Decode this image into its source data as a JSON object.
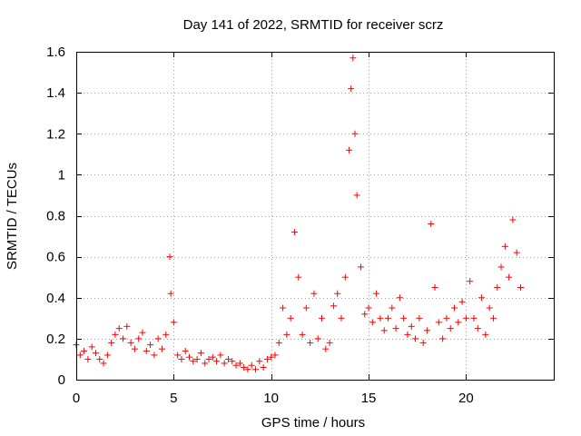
{
  "chart_data": {
    "type": "scatter",
    "title": "Day 141 of 2022, SRMTID for receiver scrz",
    "xlabel": "GPS time / hours",
    "ylabel": "SRMTID / TECUs",
    "xlim": [
      0,
      24.5
    ],
    "ylim": [
      0,
      1.6
    ],
    "xticks": [
      0,
      5,
      10,
      15,
      20
    ],
    "xtick_labels": [
      "0",
      "5",
      "10",
      "15",
      "20"
    ],
    "yticks": [
      0,
      0.2,
      0.4,
      0.6,
      0.8,
      1.0,
      1.2,
      1.4,
      1.6
    ],
    "ytick_labels": [
      "0",
      "0.2",
      "0.4",
      "0.6",
      "0.8",
      "1",
      "1.2",
      "1.4",
      "1.6"
    ],
    "grid": true,
    "marker": "plus",
    "color": "#ff0000",
    "series": [
      {
        "name": "SRMTID",
        "x": [
          0.0,
          0.2,
          0.4,
          0.6,
          0.8,
          1.0,
          1.2,
          1.4,
          1.6,
          1.8,
          2.0,
          2.2,
          2.4,
          2.6,
          2.8,
          3.0,
          3.2,
          3.4,
          3.6,
          3.8,
          4.0,
          4.2,
          4.4,
          4.6,
          4.8,
          4.85,
          5.0,
          5.2,
          5.4,
          5.6,
          5.8,
          6.0,
          6.2,
          6.4,
          6.6,
          6.8,
          7.0,
          7.2,
          7.4,
          7.6,
          7.8,
          8.0,
          8.2,
          8.4,
          8.6,
          8.8,
          9.0,
          9.2,
          9.4,
          9.6,
          9.8,
          10.0,
          10.2,
          10.4,
          10.6,
          10.8,
          11.0,
          11.2,
          11.4,
          11.6,
          11.8,
          12.0,
          12.2,
          12.4,
          12.6,
          12.8,
          13.0,
          13.2,
          13.4,
          13.6,
          13.8,
          14.0,
          14.1,
          14.2,
          14.3,
          14.4,
          14.6,
          14.8,
          15.0,
          15.2,
          15.4,
          15.6,
          15.8,
          16.0,
          16.2,
          16.4,
          16.6,
          16.8,
          17.0,
          17.2,
          17.4,
          17.6,
          17.8,
          18.0,
          18.2,
          18.4,
          18.6,
          18.8,
          19.0,
          19.2,
          19.4,
          19.6,
          19.8,
          20.0,
          20.2,
          20.4,
          20.6,
          20.8,
          21.0,
          21.2,
          21.4,
          21.6,
          21.8,
          22.0,
          22.2,
          22.4,
          22.6,
          22.8
        ],
        "y": [
          0.17,
          0.12,
          0.14,
          0.1,
          0.16,
          0.13,
          0.1,
          0.08,
          0.12,
          0.18,
          0.22,
          0.25,
          0.2,
          0.26,
          0.18,
          0.15,
          0.2,
          0.23,
          0.14,
          0.17,
          0.12,
          0.2,
          0.15,
          0.22,
          0.6,
          0.42,
          0.28,
          0.12,
          0.1,
          0.14,
          0.11,
          0.09,
          0.1,
          0.13,
          0.08,
          0.1,
          0.11,
          0.09,
          0.12,
          0.08,
          0.1,
          0.09,
          0.07,
          0.08,
          0.06,
          0.05,
          0.07,
          0.05,
          0.09,
          0.06,
          0.1,
          0.11,
          0.12,
          0.18,
          0.35,
          0.22,
          0.3,
          0.72,
          0.5,
          0.22,
          0.35,
          0.18,
          0.42,
          0.2,
          0.3,
          0.15,
          0.18,
          0.36,
          0.42,
          0.3,
          0.5,
          1.12,
          1.42,
          1.57,
          1.2,
          0.9,
          0.55,
          0.32,
          0.35,
          0.28,
          0.42,
          0.3,
          0.24,
          0.3,
          0.35,
          0.25,
          0.4,
          0.3,
          0.22,
          0.26,
          0.2,
          0.3,
          0.18,
          0.24,
          0.76,
          0.45,
          0.28,
          0.2,
          0.3,
          0.25,
          0.35,
          0.28,
          0.38,
          0.3,
          0.48,
          0.3,
          0.25,
          0.4,
          0.22,
          0.35,
          0.3,
          0.45,
          0.55,
          0.65,
          0.5,
          0.78,
          0.62,
          0.45
        ]
      }
    ]
  }
}
